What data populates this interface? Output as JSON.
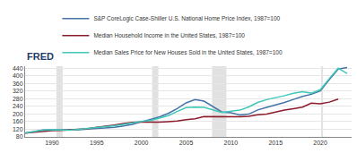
{
  "chart_data": {
    "type": "line",
    "logo": "FRED",
    "x": [
      1987,
      1988,
      1989,
      1990,
      1991,
      1992,
      1993,
      1994,
      1995,
      1996,
      1997,
      1998,
      1999,
      2000,
      2001,
      2002,
      2003,
      2004,
      2005,
      2006,
      2007,
      2008,
      2009,
      2010,
      2011,
      2012,
      2013,
      2014,
      2015,
      2016,
      2017,
      2018,
      2019,
      2020,
      2021,
      2022,
      2023
    ],
    "series": [
      {
        "name": "S&P CoreLogic Case-Shiller U.S. National Home Price Index, 1987=100",
        "color": "#4572a7",
        "values": [
          100,
          108,
          116,
          118,
          117,
          117,
          118,
          121,
          123,
          126,
          130,
          137,
          146,
          159,
          170,
          184,
          203,
          228,
          258,
          275,
          267,
          237,
          210,
          206,
          195,
          199,
          221,
          235,
          247,
          260,
          276,
          292,
          303,
          321,
          380,
          435,
          443
        ]
      },
      {
        "name": "Median Household Income in the United States, 1987=100",
        "color": "#8b1a2b",
        "values": [
          100,
          104,
          110,
          113,
          114,
          116,
          119,
          123,
          130,
          135,
          142,
          150,
          156,
          158,
          157,
          157,
          160,
          163,
          170,
          175,
          187,
          186,
          185,
          184,
          185,
          188,
          196,
          199,
          210,
          220,
          228,
          236,
          257,
          253,
          262,
          278,
          null
        ]
      },
      {
        "name": "Median Sales Price for New Houses Sold in the United States, 1987=100",
        "color": "#40c8b8",
        "values": [
          100,
          107,
          115,
          117,
          115,
          115,
          120,
          125,
          127,
          133,
          139,
          146,
          155,
          161,
          166,
          180,
          191,
          213,
          233,
          236,
          235,
          222,
          208,
          215,
          220,
          237,
          260,
          275,
          284,
          296,
          308,
          316,
          309,
          327,
          385,
          440,
          412
        ]
      }
    ],
    "recessions": [
      [
        1990.5,
        1991.2
      ],
      [
        2001.2,
        2001.9
      ],
      [
        2007.9,
        2009.5
      ],
      [
        2020.1,
        2020.3
      ]
    ],
    "xlim": [
      1987,
      2023.5
    ],
    "xticks": [
      1990,
      1995,
      2000,
      2005,
      2010,
      2015,
      2020
    ],
    "ylim": [
      80,
      450
    ],
    "yticks": [
      80,
      120,
      160,
      200,
      240,
      280,
      320,
      360,
      400,
      440
    ],
    "grid": true,
    "legend": "top-left"
  }
}
